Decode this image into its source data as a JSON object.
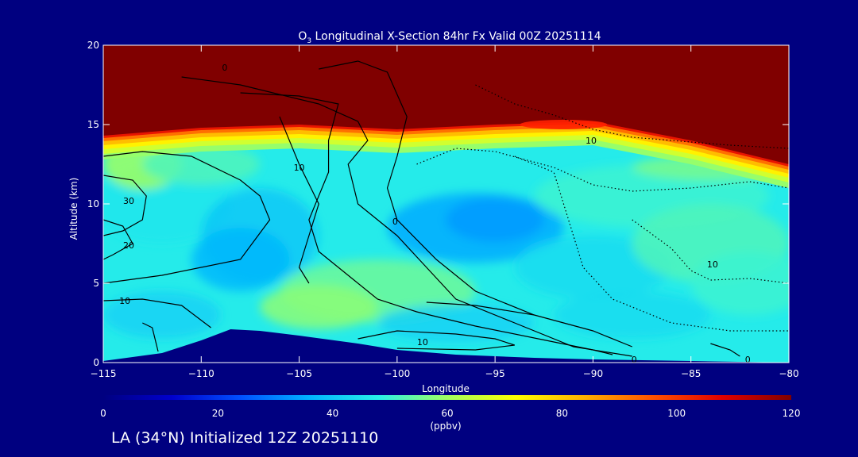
{
  "chart_data": {
    "type": "heatmap",
    "title": "O3 Longitudinal X-Section 84hr  Fx Valid 00Z 20251114",
    "title_parts": {
      "prefix": "O",
      "subscript": "3",
      "rest": " Longitudinal X-Section 84hr  Fx Valid 00Z 20251114"
    },
    "xlabel": "Longitude",
    "ylabel": "Altitude (km)",
    "xlim": [
      -115,
      -80
    ],
    "ylim": [
      0,
      20
    ],
    "x_ticks": [
      -115,
      -110,
      -105,
      -100,
      -95,
      -90,
      -85,
      -80
    ],
    "x_tick_labels": [
      "−115",
      "−110",
      "−105",
      "−100",
      "−95",
      "−90",
      "−85",
      "−80"
    ],
    "y_ticks": [
      0,
      5,
      10,
      15,
      20
    ],
    "y_tick_labels": [
      "0",
      "5",
      "10",
      "15",
      "20"
    ],
    "colorbar": {
      "min": 0,
      "max": 120,
      "ticks": [
        0,
        20,
        40,
        60,
        80,
        100,
        120
      ],
      "tick_labels": [
        "0",
        "20",
        "40",
        "60",
        "80",
        "100",
        "120"
      ],
      "unit": "(ppbv)",
      "colors": [
        "#000080",
        "#0000cd",
        "#0050ff",
        "#00b4ff",
        "#28f0e8",
        "#a0ff60",
        "#ffff00",
        "#ffb000",
        "#ff5000",
        "#e00000",
        "#800000"
      ]
    },
    "field_summary": {
      "stratosphere_value": 120,
      "tropopause_km": [
        {
          "lon": -115,
          "km": 14.3
        },
        {
          "lon": -110,
          "km": 14.8
        },
        {
          "lon": -105,
          "km": 15.0
        },
        {
          "lon": -100,
          "km": 14.7
        },
        {
          "lon": -95,
          "km": 15.0
        },
        {
          "lon": -90,
          "km": 15.2
        },
        {
          "lon": -85,
          "km": 14.0
        },
        {
          "lon": -80,
          "km": 12.5
        }
      ],
      "low_ozone_core": {
        "lon": -96,
        "km": 8.5,
        "value": 35
      },
      "high_ozone_region": {
        "lon": -102,
        "km": 4.5,
        "value": 55
      }
    },
    "terrain_km": [
      {
        "lon": -115,
        "km": 0.1
      },
      {
        "lon": -112,
        "km": 0.6
      },
      {
        "lon": -110,
        "km": 1.4
      },
      {
        "lon": -108.5,
        "km": 2.1
      },
      {
        "lon": -107,
        "km": 2.0
      },
      {
        "lon": -105,
        "km": 1.7
      },
      {
        "lon": -102,
        "km": 1.2
      },
      {
        "lon": -100,
        "km": 0.8
      },
      {
        "lon": -97,
        "km": 0.5
      },
      {
        "lon": -93,
        "km": 0.3
      },
      {
        "lon": -90,
        "km": 0.2
      },
      {
        "lon": -85,
        "km": 0.1
      },
      {
        "lon": -80,
        "km": 0.0
      }
    ],
    "contour_labels": [
      {
        "text": "0",
        "lon": -108.8,
        "km": 18.6
      },
      {
        "text": "10",
        "lon": -105,
        "km": 12.3
      },
      {
        "text": "30",
        "lon": -113.7,
        "km": 10.2
      },
      {
        "text": "20",
        "lon": -113.7,
        "km": 7.4
      },
      {
        "text": "10",
        "lon": -113.9,
        "km": 3.9
      },
      {
        "text": "0",
        "lon": -100.1,
        "km": 8.9
      },
      {
        "text": "10",
        "lon": -90.1,
        "km": 14.0
      },
      {
        "text": "10",
        "lon": -98.7,
        "km": 1.3
      },
      {
        "text": "10",
        "lon": -83.9,
        "km": 6.2
      },
      {
        "text": "0",
        "lon": -87.9,
        "km": 0.2
      },
      {
        "text": "0",
        "lon": -82.1,
        "km": 0.2
      }
    ]
  },
  "footer": {
    "location_label": "LA (34°N) Initialized 12Z 20251110"
  }
}
